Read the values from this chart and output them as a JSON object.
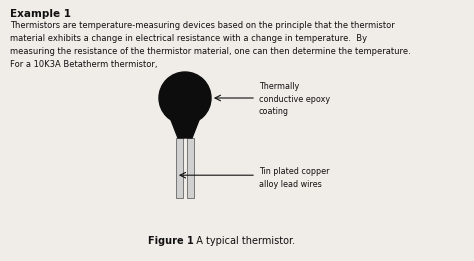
{
  "title": "Example 1",
  "body_text": "Thermistors are temperature-measuring devices based on the principle that the thermistor\nmaterial exhibits a change in electrical resistance with a change in temperature.  By\nmeasuring the resistance of the thermistor material, one can then determine the temperature.\nFor a 10K3A Betatherm thermistor,",
  "label1": "Thermally\nconductive epoxy\ncoating",
  "label2": "Tin plated copper\nalloy lead wires",
  "figure_caption_bold": "Figure 1",
  "figure_caption_normal": "  A typical thermistor.",
  "bg_color": "#f0ede8",
  "text_color": "#111111",
  "thermistor_body_color": "#0d0d0d",
  "wire_fill_color": "#d0d0d0",
  "wire_edge_color": "#666666",
  "arrow_color": "#111111"
}
